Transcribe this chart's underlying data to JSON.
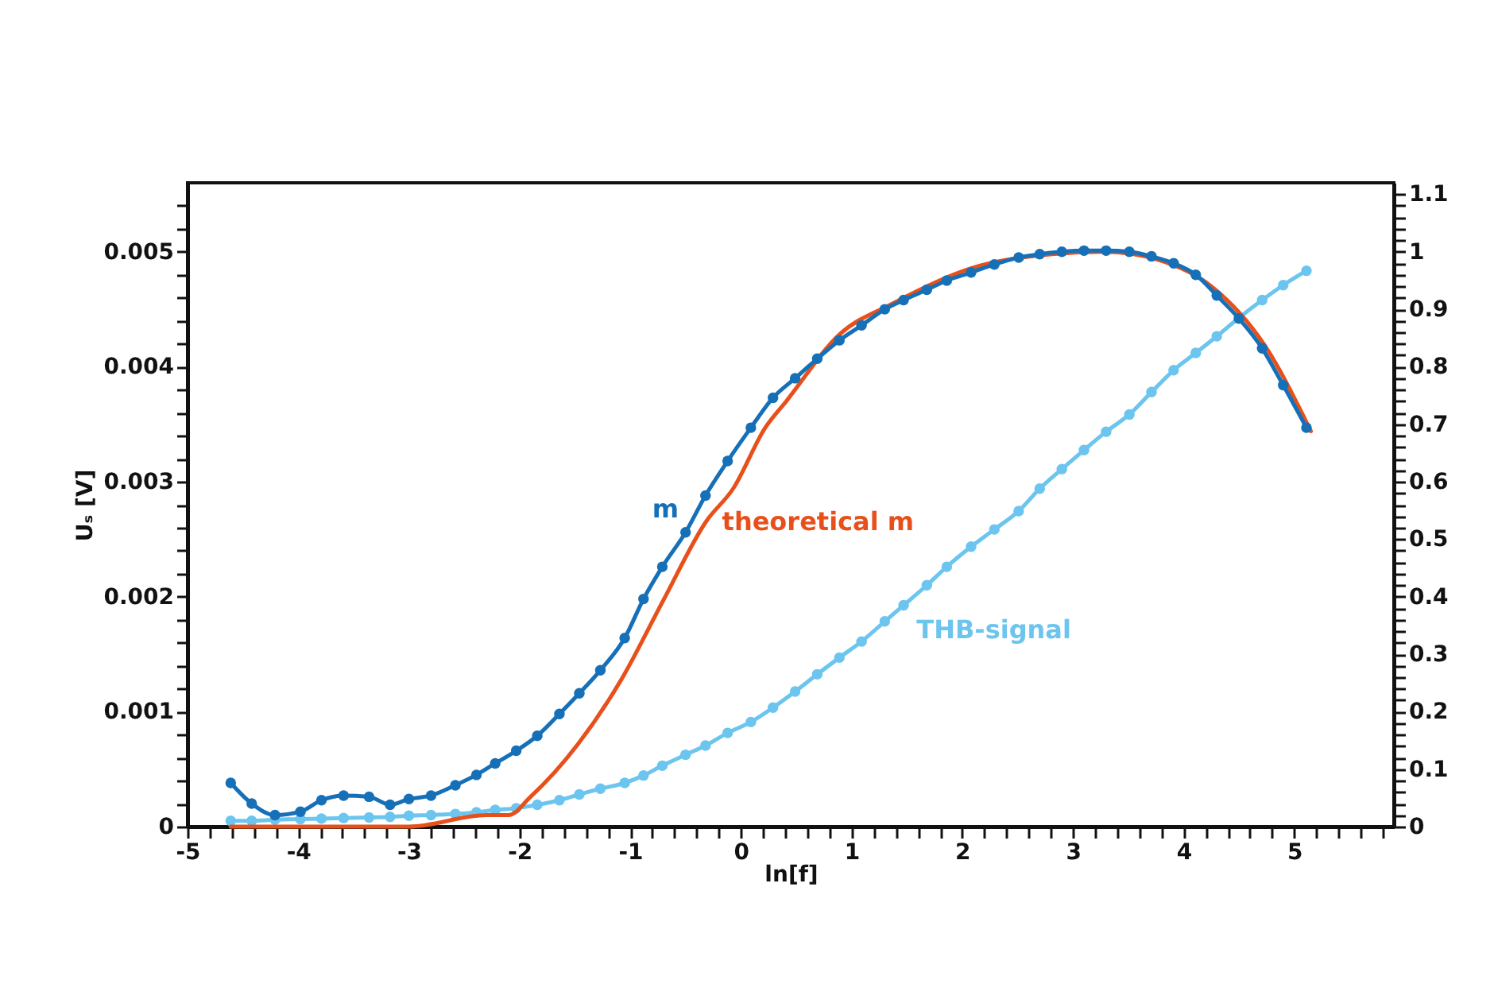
{
  "chart_data": {
    "type": "line",
    "xlabel": "ln[f]",
    "ylabel": "Uₛ [V]",
    "x": [
      -4.61,
      -4.42,
      -4.21,
      -3.98,
      -3.79,
      -3.59,
      -3.36,
      -3.17,
      -3.0,
      -2.8,
      -2.58,
      -2.39,
      -2.22,
      -2.03,
      -1.84,
      -1.64,
      -1.46,
      -1.27,
      -1.05,
      -0.88,
      -0.71,
      -0.5,
      -0.32,
      -0.12,
      0.09,
      0.29,
      0.49,
      0.69,
      0.89,
      1.09,
      1.3,
      1.47,
      1.68,
      1.86,
      2.08,
      2.29,
      2.51,
      2.7,
      2.9,
      3.1,
      3.3,
      3.51,
      3.71,
      3.91,
      4.11,
      4.3,
      4.5,
      4.71,
      4.9,
      5.11
    ],
    "series": [
      {
        "name": "theoretical m",
        "color": "#e8501b",
        "marker": "none",
        "x": [
          -4.61,
          -3.0,
          -2.3,
          -2.1,
          -1.9,
          -1.47,
          -1.08,
          -0.7,
          -0.31,
          -0.07,
          0.22,
          0.41,
          0.89,
          1.37,
          2.09,
          2.81,
          3.29,
          3.77,
          4.25,
          4.73,
          5.15
        ],
        "values": [
          0,
          0,
          0.0001,
          0.0001,
          0.00026,
          0.00072,
          0.00128,
          0.00197,
          0.00266,
          0.00294,
          0.00347,
          0.0037,
          0.00428,
          0.00455,
          0.00486,
          0.00498,
          0.005,
          0.00493,
          0.0047,
          0.00419,
          0.00344
        ]
      },
      {
        "name": "m",
        "color": "#1670b8",
        "marker": "circle",
        "values": [
          0.00038,
          0.0002,
          0.0001,
          0.00013,
          0.00023,
          0.00027,
          0.00026,
          0.00019,
          0.00024,
          0.00027,
          0.00036,
          0.00045,
          0.00055,
          0.00066,
          0.00079,
          0.00098,
          0.00116,
          0.00136,
          0.00164,
          0.00198,
          0.00226,
          0.00256,
          0.00288,
          0.00318,
          0.00347,
          0.00373,
          0.0039,
          0.00407,
          0.00423,
          0.00436,
          0.0045,
          0.00458,
          0.00467,
          0.00475,
          0.00482,
          0.00489,
          0.00495,
          0.00498,
          0.005,
          0.00501,
          0.00501,
          0.005,
          0.00496,
          0.0049,
          0.0048,
          0.00462,
          0.00442,
          0.00416,
          0.00384,
          0.00347
        ]
      },
      {
        "name": "THB-signal",
        "color": "#6cc5ef",
        "marker": "circle",
        "axis": "y2",
        "values": [
          0.01,
          0.01,
          0.012,
          0.013,
          0.014,
          0.015,
          0.016,
          0.017,
          0.019,
          0.02,
          0.022,
          0.025,
          0.029,
          0.032,
          0.038,
          0.046,
          0.056,
          0.066,
          0.076,
          0.089,
          0.106,
          0.125,
          0.141,
          0.163,
          0.182,
          0.207,
          0.235,
          0.265,
          0.294,
          0.322,
          0.357,
          0.385,
          0.42,
          0.452,
          0.487,
          0.517,
          0.549,
          0.588,
          0.622,
          0.655,
          0.687,
          0.717,
          0.756,
          0.794,
          0.824,
          0.853,
          0.885,
          0.916,
          0.942,
          0.967
        ]
      }
    ],
    "xlim": [
      -5,
      5.9
    ],
    "xticks": [
      -5,
      {
        "value": -4.8,
        "label": null
      },
      {
        "value": -4.6,
        "label": null
      },
      {
        "value": -4.4,
        "label": null
      },
      {
        "value": -4.2,
        "label": null
      },
      -4,
      {
        "value": -3.8,
        "label": null
      },
      {
        "value": -3.6,
        "label": null
      },
      {
        "value": -3.4,
        "label": null
      },
      {
        "value": -3.2,
        "label": null
      },
      -3,
      {
        "value": -2.8,
        "label": null
      },
      {
        "value": -2.6,
        "label": null
      },
      {
        "value": -2.4,
        "label": null
      },
      {
        "value": -2.2,
        "label": null
      },
      -2,
      {
        "value": -1.8,
        "label": null
      },
      {
        "value": -1.6,
        "label": null
      },
      {
        "value": -1.4,
        "label": null
      },
      {
        "value": -1.2,
        "label": null
      },
      -1,
      {
        "value": -0.8,
        "label": null
      },
      {
        "value": -0.6,
        "label": null
      },
      {
        "value": -0.4,
        "label": null
      },
      {
        "value": -0.2,
        "label": null
      },
      0,
      {
        "value": 0.2,
        "label": null
      },
      {
        "value": 0.4,
        "label": null
      },
      {
        "value": 0.6,
        "label": null
      },
      {
        "value": 0.8,
        "label": null
      },
      1,
      {
        "value": 1.2,
        "label": null
      },
      {
        "value": 1.4,
        "label": null
      },
      {
        "value": 1.6,
        "label": null
      },
      {
        "value": 1.8,
        "label": null
      },
      2,
      {
        "value": 2.2,
        "label": null
      },
      {
        "value": 2.4,
        "label": null
      },
      {
        "value": 2.6,
        "label": null
      },
      {
        "value": 2.8,
        "label": null
      },
      3,
      {
        "value": 3.2,
        "label": null
      },
      {
        "value": 3.4,
        "label": null
      },
      {
        "value": 3.6,
        "label": null
      },
      {
        "value": 3.8,
        "label": null
      },
      4,
      {
        "value": 4.2,
        "label": null
      },
      {
        "value": 4.4,
        "label": null
      },
      {
        "value": 4.6,
        "label": null
      },
      {
        "value": 4.8,
        "label": null
      },
      5,
      {
        "value": 5.2,
        "label": null
      },
      {
        "value": 5.4,
        "label": null
      },
      {
        "value": 5.6,
        "label": null
      },
      {
        "value": 5.8,
        "label": null
      }
    ],
    "ylim": [
      0,
      0.0056
    ],
    "yticks": [
      0,
      {
        "value": 0.0002,
        "label": null
      },
      {
        "value": 0.0004,
        "label": null
      },
      {
        "value": 0.0006,
        "label": null
      },
      {
        "value": 0.0008,
        "label": null
      },
      0.001,
      {
        "value": 0.0012,
        "label": null
      },
      {
        "value": 0.0014,
        "label": null
      },
      {
        "value": 0.0016,
        "label": null
      },
      {
        "value": 0.0018,
        "label": null
      },
      0.002,
      {
        "value": 0.0022,
        "label": null
      },
      {
        "value": 0.0024,
        "label": null
      },
      {
        "value": 0.0026,
        "label": null
      },
      {
        "value": 0.0028,
        "label": null
      },
      0.003,
      {
        "value": 0.0032,
        "label": null
      },
      {
        "value": 0.0034,
        "label": null
      },
      {
        "value": 0.0036,
        "label": null
      },
      {
        "value": 0.0038,
        "label": null
      },
      0.004,
      {
        "value": 0.0042,
        "label": null
      },
      {
        "value": 0.0044,
        "label": null
      },
      {
        "value": 0.0046,
        "label": null
      },
      {
        "value": 0.0048,
        "label": null
      },
      0.005,
      {
        "value": 0.0052,
        "label": null
      },
      {
        "value": 0.0054,
        "label": null
      }
    ],
    "y2lim": [
      0,
      1.12
    ],
    "y2ticks": [
      0,
      {
        "value": 0.02,
        "label": null
      },
      {
        "value": 0.04,
        "label": null
      },
      {
        "value": 0.06,
        "label": null
      },
      {
        "value": 0.08,
        "label": null
      },
      0.1,
      {
        "value": 0.12,
        "label": null
      },
      {
        "value": 0.14,
        "label": null
      },
      {
        "value": 0.16,
        "label": null
      },
      {
        "value": 0.18,
        "label": null
      },
      0.2,
      {
        "value": 0.22,
        "label": null
      },
      {
        "value": 0.24,
        "label": null
      },
      {
        "value": 0.26,
        "label": null
      },
      {
        "value": 0.28,
        "label": null
      },
      0.3,
      {
        "value": 0.32,
        "label": null
      },
      {
        "value": 0.34,
        "label": null
      },
      {
        "value": 0.36,
        "label": null
      },
      {
        "value": 0.38,
        "label": null
      },
      0.4,
      {
        "value": 0.42,
        "label": null
      },
      {
        "value": 0.44,
        "label": null
      },
      {
        "value": 0.46,
        "label": null
      },
      {
        "value": 0.48,
        "label": null
      },
      0.5,
      {
        "value": 0.52,
        "label": null
      },
      {
        "value": 0.54,
        "label": null
      },
      {
        "value": 0.56,
        "label": null
      },
      {
        "value": 0.58,
        "label": null
      },
      0.6,
      {
        "value": 0.62,
        "label": null
      },
      {
        "value": 0.64,
        "label": null
      },
      {
        "value": 0.66,
        "label": null
      },
      {
        "value": 0.68,
        "label": null
      },
      0.7,
      {
        "value": 0.72,
        "label": null
      },
      {
        "value": 0.74,
        "label": null
      },
      {
        "value": 0.76,
        "label": null
      },
      {
        "value": 0.78,
        "label": null
      },
      0.8,
      {
        "value": 0.82,
        "label": null
      },
      {
        "value": 0.84,
        "label": null
      },
      {
        "value": 0.86,
        "label": null
      },
      {
        "value": 0.88,
        "label": null
      },
      0.9,
      {
        "value": 0.92,
        "label": null
      },
      {
        "value": 0.94,
        "label": null
      },
      {
        "value": 0.96,
        "label": null
      },
      {
        "value": 0.98,
        "label": null
      },
      1,
      {
        "value": 1.02,
        "label": null
      },
      {
        "value": 1.04,
        "label": null
      },
      {
        "value": 1.06,
        "label": null
      },
      {
        "value": 1.08,
        "label": null
      },
      1.1
    ],
    "grid": false,
    "line_style": "solid"
  }
}
